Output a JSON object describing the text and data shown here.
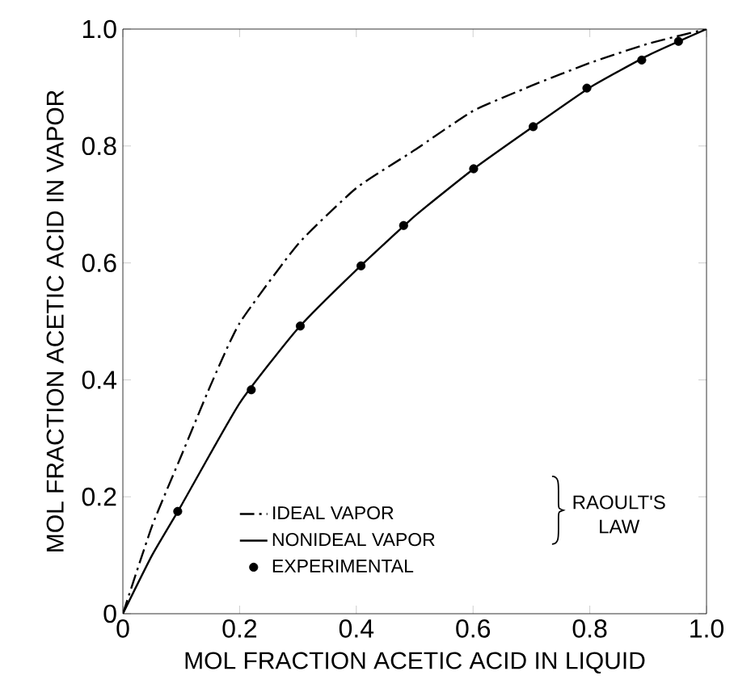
{
  "chart_data": {
    "type": "line",
    "xlabel": "MOL FRACTION ACETIC ACID IN LIQUID",
    "ylabel": "MOL FRACTION ACETIC ACID IN VAPOR",
    "xlim": [
      0,
      1
    ],
    "ylim": [
      0,
      1
    ],
    "xticks": [
      0,
      0.2,
      0.4,
      0.6,
      {
        "value": 0.8,
        "label": "0.8"
      },
      {
        "value": 1,
        "label": "1.0"
      }
    ],
    "yticks": [
      0,
      0.2,
      0.4,
      0.6,
      0.8,
      {
        "value": 1,
        "label": "1.0"
      }
    ],
    "legend": "bottom",
    "grid": false,
    "annotations": [
      "RAOULT'S LAW"
    ],
    "series": [
      {
        "name": "IDEAL VAPOR",
        "color": "#000000",
        "line_style": "dashed",
        "marker": "none",
        "x": [
          0,
          0.05,
          0.1,
          0.15,
          0.2,
          0.3,
          0.4,
          0.5,
          0.6,
          0.7,
          0.8,
          0.9,
          1
        ],
        "values": [
          0,
          0.15,
          0.27,
          0.39,
          0.497,
          0.632,
          0.728,
          0.793,
          0.86,
          0.903,
          0.942,
          0.975,
          1
        ]
      },
      {
        "name": "NONIDEAL VAPOR",
        "color": "#000000",
        "line_style": "solid",
        "marker": "none",
        "x": [
          0,
          0.05,
          0.1,
          0.2,
          0.3,
          0.4,
          0.5,
          0.6,
          0.7,
          0.8,
          0.9,
          1
        ],
        "values": [
          0,
          0.1,
          0.185,
          0.36,
          0.488,
          0.588,
          0.68,
          0.76,
          0.831,
          0.9,
          0.955,
          1
        ]
      },
      {
        "name": "EXPERIMENTAL",
        "type": "scatter",
        "color": "#000000",
        "marker": "circle",
        "x": [
          0.094,
          0.22,
          0.304,
          0.408,
          0.481,
          0.601,
          0.703,
          0.795,
          0.889,
          0.952
        ],
        "values": [
          0.175,
          0.383,
          0.492,
          0.595,
          0.664,
          0.761,
          0.833,
          0.899,
          0.947,
          0.979
        ]
      }
    ]
  }
}
